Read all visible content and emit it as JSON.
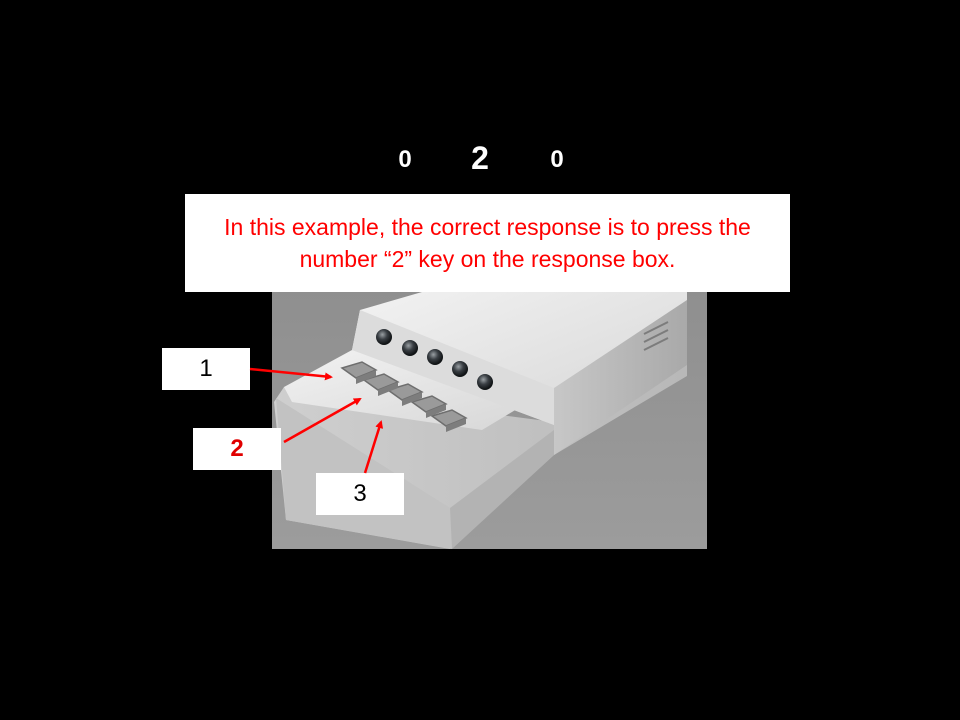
{
  "stimulus": {
    "left_digit": "0",
    "center_digit": "2",
    "right_digit": "0"
  },
  "instruction": {
    "text": "In this example, the correct response is to press the number “2” key on the response box."
  },
  "key_labels": {
    "key1": "1",
    "key2": "2",
    "key3": "3"
  },
  "colors": {
    "background": "#000000",
    "instruction_text": "#ff0000",
    "highlight_label": "#e00000",
    "arrow": "#ff0000"
  }
}
